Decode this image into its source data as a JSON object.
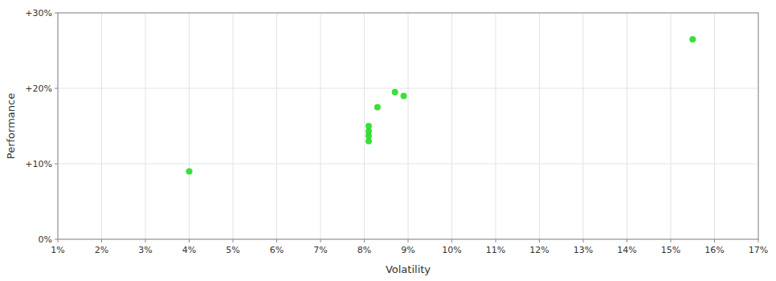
{
  "chart_data": {
    "type": "scatter",
    "xlabel": "Volatility",
    "ylabel": "Performance",
    "x": [
      0.155,
      0.083,
      0.087,
      0.089,
      0.081,
      0.081,
      0.081,
      0.081,
      0.04
    ],
    "values": [
      0.265,
      0.175,
      0.195,
      0.19,
      0.15,
      0.143,
      0.137,
      0.13,
      0.09
    ],
    "color": "#22dd22",
    "xlim": [
      0.01,
      0.17
    ],
    "ylim": [
      0.0,
      0.3
    ],
    "xticks": [
      {
        "value": 0.01,
        "label": "1%"
      },
      {
        "value": 0.02,
        "label": "2%"
      },
      {
        "value": 0.03,
        "label": "3%"
      },
      {
        "value": 0.04,
        "label": "4%"
      },
      {
        "value": 0.05,
        "label": "5%"
      },
      {
        "value": 0.06,
        "label": "6%"
      },
      {
        "value": 0.07,
        "label": "7%"
      },
      {
        "value": 0.08,
        "label": "8%"
      },
      {
        "value": 0.09,
        "label": "9%"
      },
      {
        "value": 0.1,
        "label": "10%"
      },
      {
        "value": 0.11,
        "label": "11%"
      },
      {
        "value": 0.12,
        "label": "12%"
      },
      {
        "value": 0.13,
        "label": "13%"
      },
      {
        "value": 0.14,
        "label": "14%"
      },
      {
        "value": 0.15,
        "label": "15%"
      },
      {
        "value": 0.16,
        "label": "16%"
      },
      {
        "value": 0.17,
        "label": "17%"
      }
    ],
    "yticks": [
      {
        "value": 0.0,
        "label": "0%"
      },
      {
        "value": 0.1,
        "label": "+10%"
      },
      {
        "value": 0.2,
        "label": "+20%"
      },
      {
        "value": 0.3,
        "label": "+30%"
      }
    ],
    "grid": true
  }
}
